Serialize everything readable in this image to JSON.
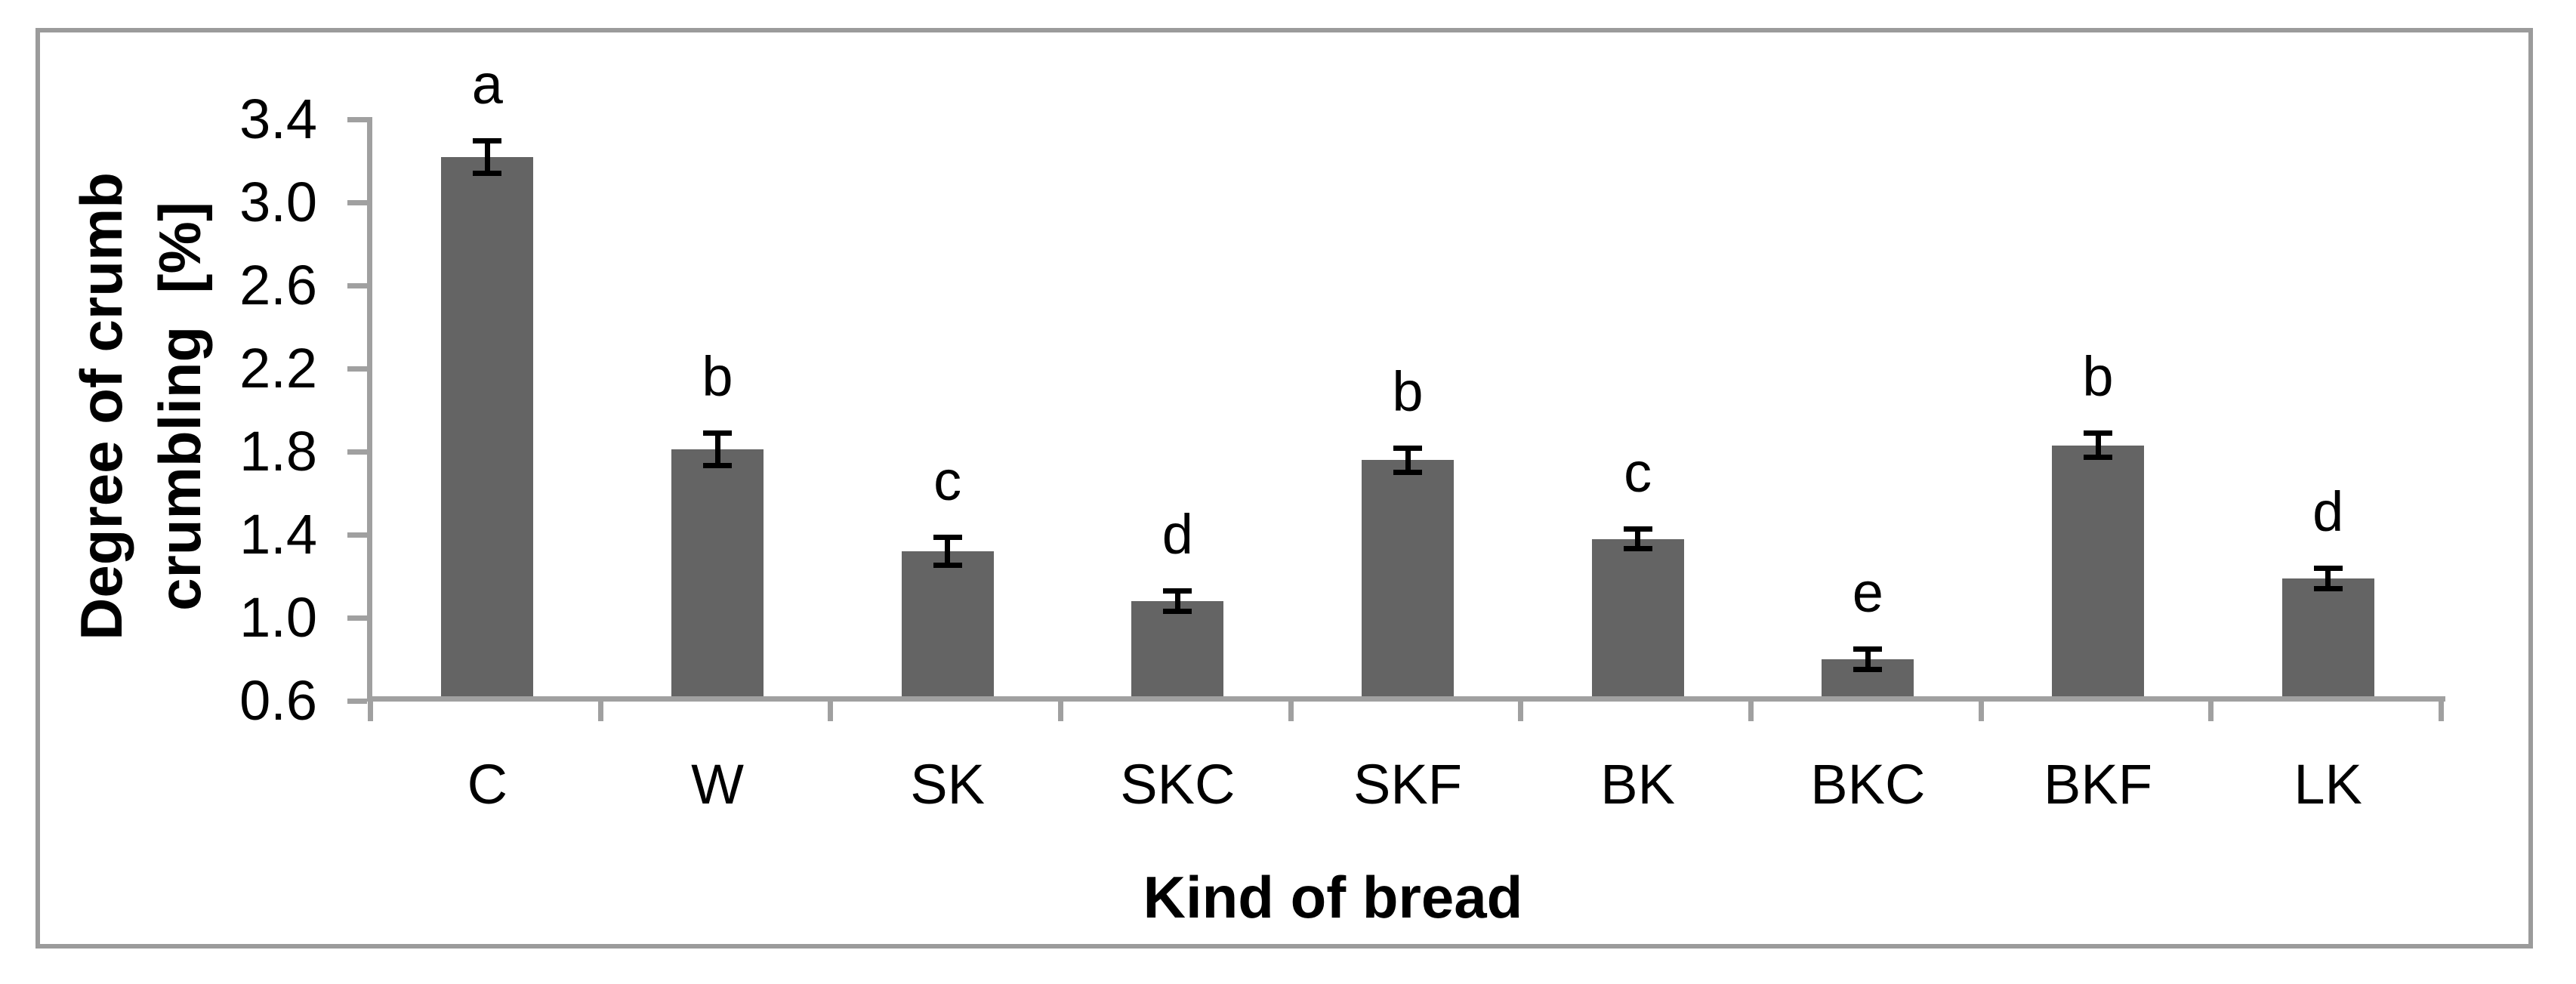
{
  "chart_data": {
    "type": "bar",
    "title": "",
    "categories": [
      "C",
      "W",
      "SK",
      "SKC",
      "SKF",
      "BK",
      "BKC",
      "BKF",
      "LK"
    ],
    "values": [
      3.22,
      1.81,
      1.32,
      1.08,
      1.76,
      1.38,
      0.8,
      1.83,
      1.19
    ],
    "errors": [
      0.08,
      0.08,
      0.07,
      0.05,
      0.06,
      0.05,
      0.05,
      0.06,
      0.05
    ],
    "significance_letters": [
      "a",
      "b",
      "c",
      "d",
      "b",
      "c",
      "e",
      "b",
      "d"
    ],
    "xlabel": "Kind of bread",
    "ylabel_line1": "Degree of crumb",
    "ylabel_line2": "crumbling  [%]",
    "ytick_labels": [
      "3.4",
      "3.0",
      "2.6",
      "2.2",
      "1.8",
      "1.4",
      "1.0",
      "0.6"
    ],
    "yticks": [
      3.4,
      3.0,
      2.6,
      2.2,
      1.8,
      1.4,
      1.0,
      0.6
    ],
    "ylim": [
      0.6,
      3.4
    ],
    "grid": false,
    "legend": false,
    "error_bars": true,
    "bar_color": "#646464",
    "axis_color": "#A0A0A0",
    "error_color": "#000000",
    "text_color": "#000000"
  }
}
